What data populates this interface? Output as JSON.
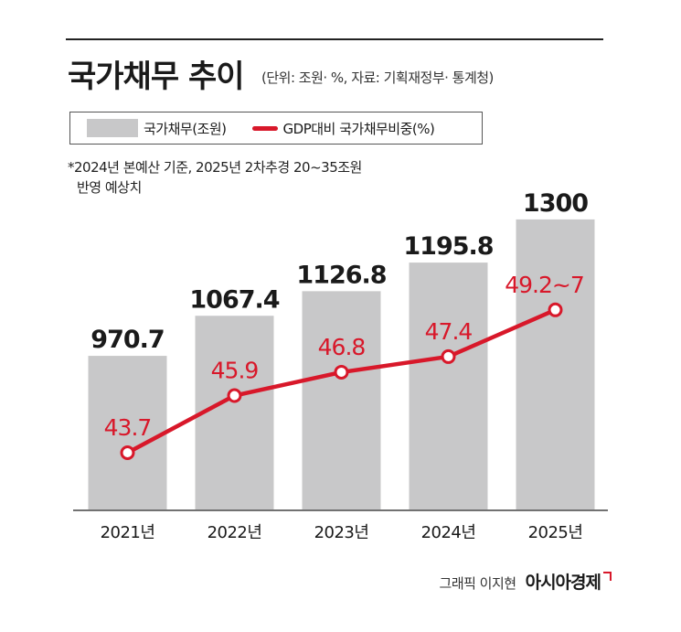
{
  "title": "국가채무 추이",
  "subtitle": "(단위: 조원· %, 자료: 기획재정부· 통계청)",
  "legend": {
    "bar_label": "국가채무(조원)",
    "line_label": "GDP대비 국가채무비중(%)"
  },
  "note": {
    "line1": "*2024년 본예산 기준, 2025년 2차추경 20~35조원",
    "line2": "반영 예상치"
  },
  "footer": {
    "credit": "그래픽 이지현",
    "brand": "아시아경제"
  },
  "colors": {
    "bar": "#c8c8c9",
    "line": "#d8182a",
    "text": "#1a1a1a"
  },
  "chart_data": {
    "type": "bar",
    "categories": [
      "2021년",
      "2022년",
      "2023년",
      "2024년",
      "2025년"
    ],
    "series": [
      {
        "name": "국가채무(조원)",
        "type": "bar",
        "values": [
          970.7,
          1067.4,
          1126.8,
          1195.8,
          1300
        ],
        "labels": [
          "970.7",
          "1067.4",
          "1126.8",
          "1195.8",
          "1300"
        ]
      },
      {
        "name": "GDP대비 국가채무비중(%)",
        "type": "line",
        "values": [
          43.7,
          45.9,
          46.8,
          47.4,
          49.2
        ],
        "labels": [
          "43.7",
          "45.9",
          "46.8",
          "47.4",
          "49.2~7"
        ]
      }
    ],
    "grid": false,
    "legend": "top-left"
  }
}
